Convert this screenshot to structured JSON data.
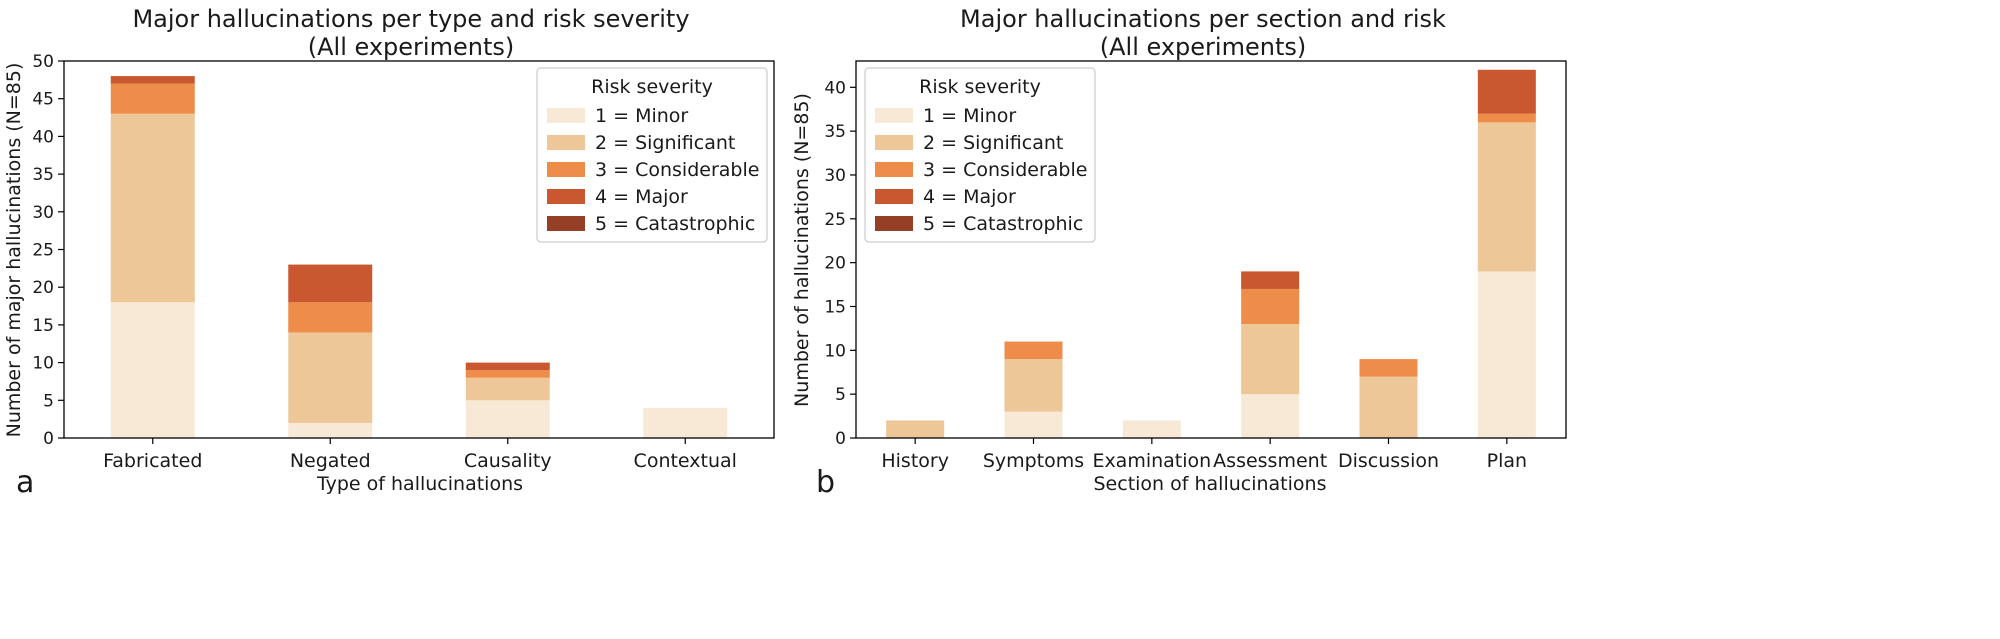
{
  "colors": {
    "1": "#f6e7d2",
    "2": "#ecc18d",
    "3": "#ec7f35",
    "4": "#c34518",
    "5": "#8b2a0f",
    "bar_opacity": "0.9"
  },
  "chart_data": [
    {
      "type": "bar",
      "stacked": true,
      "panel": "a",
      "title": [
        "Major hallucinations per type and risk severity",
        "(All experiments)"
      ],
      "xlabel": "Type of hallucinations",
      "ylabel": "Number of major hallucinations (N=85)",
      "ylim": [
        0,
        50
      ],
      "yticks": [
        0,
        5,
        10,
        15,
        20,
        25,
        30,
        35,
        40,
        45,
        50
      ],
      "categories": [
        "Fabricated",
        "Negated",
        "Causality",
        "Contextual"
      ],
      "series": [
        {
          "name": "1 = Minor",
          "key": "1",
          "values": [
            18,
            2,
            5,
            4
          ]
        },
        {
          "name": "2 = Significant",
          "key": "2",
          "values": [
            25,
            12,
            3,
            0
          ]
        },
        {
          "name": "3 = Considerable",
          "key": "3",
          "values": [
            4,
            4,
            1,
            0
          ]
        },
        {
          "name": "4 = Major",
          "key": "4",
          "values": [
            1,
            5,
            1,
            0
          ]
        },
        {
          "name": "5 = Catastrophic",
          "key": "5",
          "values": [
            0,
            0,
            0,
            0
          ]
        }
      ],
      "legend": {
        "title": "Risk severity",
        "placement": "top-right"
      }
    },
    {
      "type": "bar",
      "stacked": true,
      "panel": "b",
      "title": [
        "Major hallucinations per section and risk",
        "(All experiments)"
      ],
      "xlabel": "Section of hallucinations",
      "ylabel": "Number of hallucinations (N=85)",
      "ylim": [
        0,
        43
      ],
      "yticks": [
        0,
        5,
        10,
        15,
        20,
        25,
        30,
        35,
        40
      ],
      "categories": [
        "History",
        "Symptoms",
        "Examination",
        "Assessment",
        "Discussion",
        "Plan"
      ],
      "series": [
        {
          "name": "1 = Minor",
          "key": "1",
          "values": [
            0,
            3,
            2,
            5,
            0,
            19
          ]
        },
        {
          "name": "2 = Significant",
          "key": "2",
          "values": [
            2,
            6,
            0,
            8,
            7,
            17
          ]
        },
        {
          "name": "3 = Considerable",
          "key": "3",
          "values": [
            0,
            2,
            0,
            4,
            2,
            1
          ]
        },
        {
          "name": "4 = Major",
          "key": "4",
          "values": [
            0,
            0,
            0,
            2,
            0,
            5
          ]
        },
        {
          "name": "5 = Catastrophic",
          "key": "5",
          "values": [
            0,
            0,
            0,
            0,
            0,
            0
          ]
        }
      ],
      "legend": {
        "title": "Risk severity",
        "placement": "top-left"
      }
    }
  ]
}
